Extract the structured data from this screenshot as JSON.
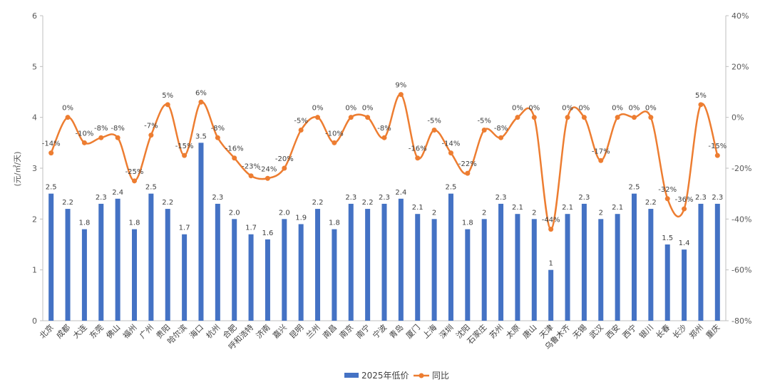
{
  "chart_data": {
    "type": "bar+line",
    "y_axis_label": "(元/㎡/天)",
    "y_left": {
      "min": 0,
      "max": 6,
      "ticks": [
        0,
        1,
        2,
        3,
        4,
        5,
        6
      ]
    },
    "y_right": {
      "min": -80,
      "max": 40,
      "ticks": [
        "-80%",
        "-60%",
        "-40%",
        "-20%",
        "0%",
        "20%",
        "40%"
      ]
    },
    "categories": [
      "北京",
      "成都",
      "大连",
      "东莞",
      "佛山",
      "福州",
      "广州",
      "贵阳",
      "哈尔滨",
      "海口",
      "杭州",
      "合肥",
      "呼和浩特",
      "济南",
      "嘉兴",
      "昆明",
      "兰州",
      "南昌",
      "南京",
      "南宁",
      "宁波",
      "青岛",
      "厦门",
      "上海",
      "深圳",
      "沈阳",
      "石家庄",
      "苏州",
      "太原",
      "唐山",
      "天津",
      "乌鲁木齐",
      "无锡",
      "武汉",
      "西安",
      "西宁",
      "银川",
      "长春",
      "长沙",
      "郑州",
      "重庆"
    ],
    "series": [
      {
        "name": "2025年低价",
        "type": "bar",
        "axis": "left",
        "color": "#4472C4",
        "values": [
          2.5,
          2.2,
          1.8,
          2.3,
          2.4,
          1.8,
          2.5,
          2.2,
          1.7,
          3.5,
          2.3,
          2.0,
          1.7,
          1.6,
          2.0,
          1.9,
          2.2,
          1.8,
          2.3,
          2.2,
          2.3,
          2.4,
          2.1,
          2.0,
          2.5,
          1.8,
          2.0,
          2.3,
          2.1,
          2.0,
          1.0,
          2.1,
          2.3,
          2.0,
          2.1,
          2.5,
          2.2,
          1.5,
          1.4,
          2.3,
          2.3
        ],
        "labels": [
          "2.5",
          "2.2",
          "1.8",
          "2.3",
          "2.4",
          "1.8",
          "2.5",
          "2.2",
          "1.7",
          "3.5",
          "2.3",
          "2.0",
          "1.7",
          "1.6",
          "2.0",
          "1.9",
          "2.2",
          "1.8",
          "2.3",
          "2.2",
          "2.3",
          "2.4",
          "2.1",
          "2",
          "2.5",
          "1.8",
          "2",
          "2.3",
          "2.1",
          "2",
          "1",
          "2.1",
          "2.3",
          "2",
          "2.1",
          "2.5",
          "2.2",
          "1.5",
          "1.4",
          "2.3",
          "2.3"
        ]
      },
      {
        "name": "同比",
        "type": "line",
        "axis": "right",
        "color": "#ED7D31",
        "values": [
          -14,
          0,
          -10,
          -8,
          -8,
          -25,
          -7,
          5,
          -15,
          6,
          -8,
          -16,
          -23,
          -24,
          -20,
          -5,
          0,
          -10,
          0,
          0,
          -8,
          9,
          -16,
          -5,
          -14,
          -22,
          -5,
          -8,
          0,
          0,
          -44,
          0,
          0,
          -17,
          0,
          0,
          0,
          -32,
          -36,
          5,
          -15
        ],
        "labels": [
          "-14%",
          "0%",
          "-10%",
          "-8%",
          "-8%",
          "-25%",
          "-7%",
          "5%",
          "-15%",
          "6%",
          "-8%",
          "-16%",
          "-23%",
          "-24%",
          "-20%",
          "-5%",
          "0%",
          "-10%",
          "0%",
          "0%",
          "-8%",
          "9%",
          "-16%",
          "-5%",
          "-14%",
          "-22%",
          "-5%",
          "-8%",
          "0%",
          "0%",
          "-44%",
          "0%",
          "0%",
          "-17%",
          "0%",
          "0%",
          "0%",
          "-32%",
          "-36%",
          "5%",
          "-15%"
        ]
      }
    ],
    "legend": {
      "position": "bottom"
    }
  }
}
